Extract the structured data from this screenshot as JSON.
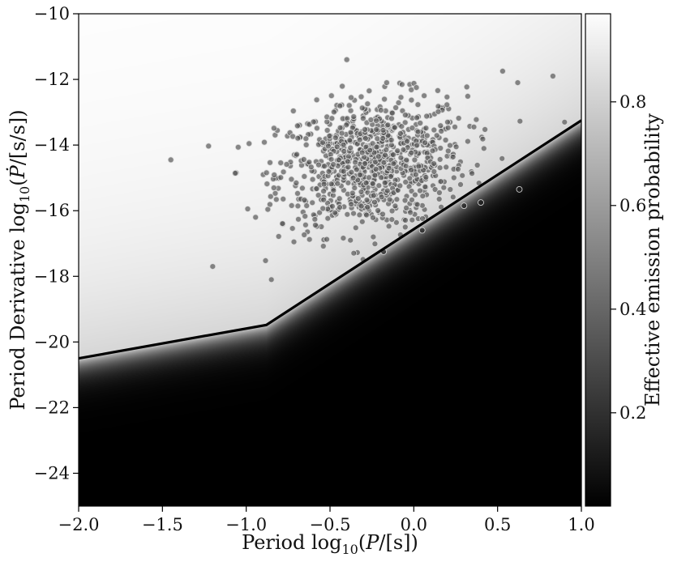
{
  "chart_data": {
    "type": "scatter",
    "title": "",
    "xlabel": "Period log10(P/[s])",
    "ylabel": "Period Derivative log10(Ṗ/[s/s])",
    "colorbar_label": "Effective emission probability",
    "xlim": [
      -2.0,
      1.0
    ],
    "ylim": [
      -25,
      -10
    ],
    "x_ticks": [
      "−2.0",
      "−1.5",
      "−1.0",
      "−0.5",
      "0.0",
      "0.5",
      "1.0"
    ],
    "y_ticks": [
      "−24",
      "−22",
      "−20",
      "−18",
      "−16",
      "−14",
      "−12",
      "−10"
    ],
    "colorbar_range": [
      0.02,
      0.97
    ],
    "colorbar_ticks": [
      "0.2",
      "0.4",
      "0.6",
      "0.8"
    ],
    "colormap": "gray",
    "death_line": [
      {
        "x": -2.0,
        "y": -20.5
      },
      {
        "x": -0.88,
        "y": -19.48
      },
      {
        "x": 1.0,
        "y": -13.25
      }
    ],
    "pulsar_cluster": {
      "count": 900,
      "center": {
        "x": -0.25,
        "y": -14.6
      },
      "spread": {
        "x": 0.28,
        "y": 1.0
      }
    },
    "outlier_points": [
      {
        "x": -1.45,
        "y": -14.45
      },
      {
        "x": -1.2,
        "y": -17.7
      },
      {
        "x": -0.85,
        "y": -18.1
      },
      {
        "x": -0.4,
        "y": -11.4
      },
      {
        "x": -0.18,
        "y": -17.25
      },
      {
        "x": 0.05,
        "y": -16.6
      },
      {
        "x": 0.3,
        "y": -15.85
      },
      {
        "x": 0.4,
        "y": -15.75
      },
      {
        "x": 0.53,
        "y": -11.75
      },
      {
        "x": 0.62,
        "y": -12.1
      },
      {
        "x": 0.63,
        "y": -15.35
      },
      {
        "x": 0.83,
        "y": -11.9
      },
      {
        "x": 0.9,
        "y": -13.3
      }
    ],
    "colors": {
      "background_top": "#ffffff",
      "background_bottom": "#000000",
      "line": "#000000",
      "point_fill": "#555555",
      "point_edge": "#dddddd"
    }
  }
}
